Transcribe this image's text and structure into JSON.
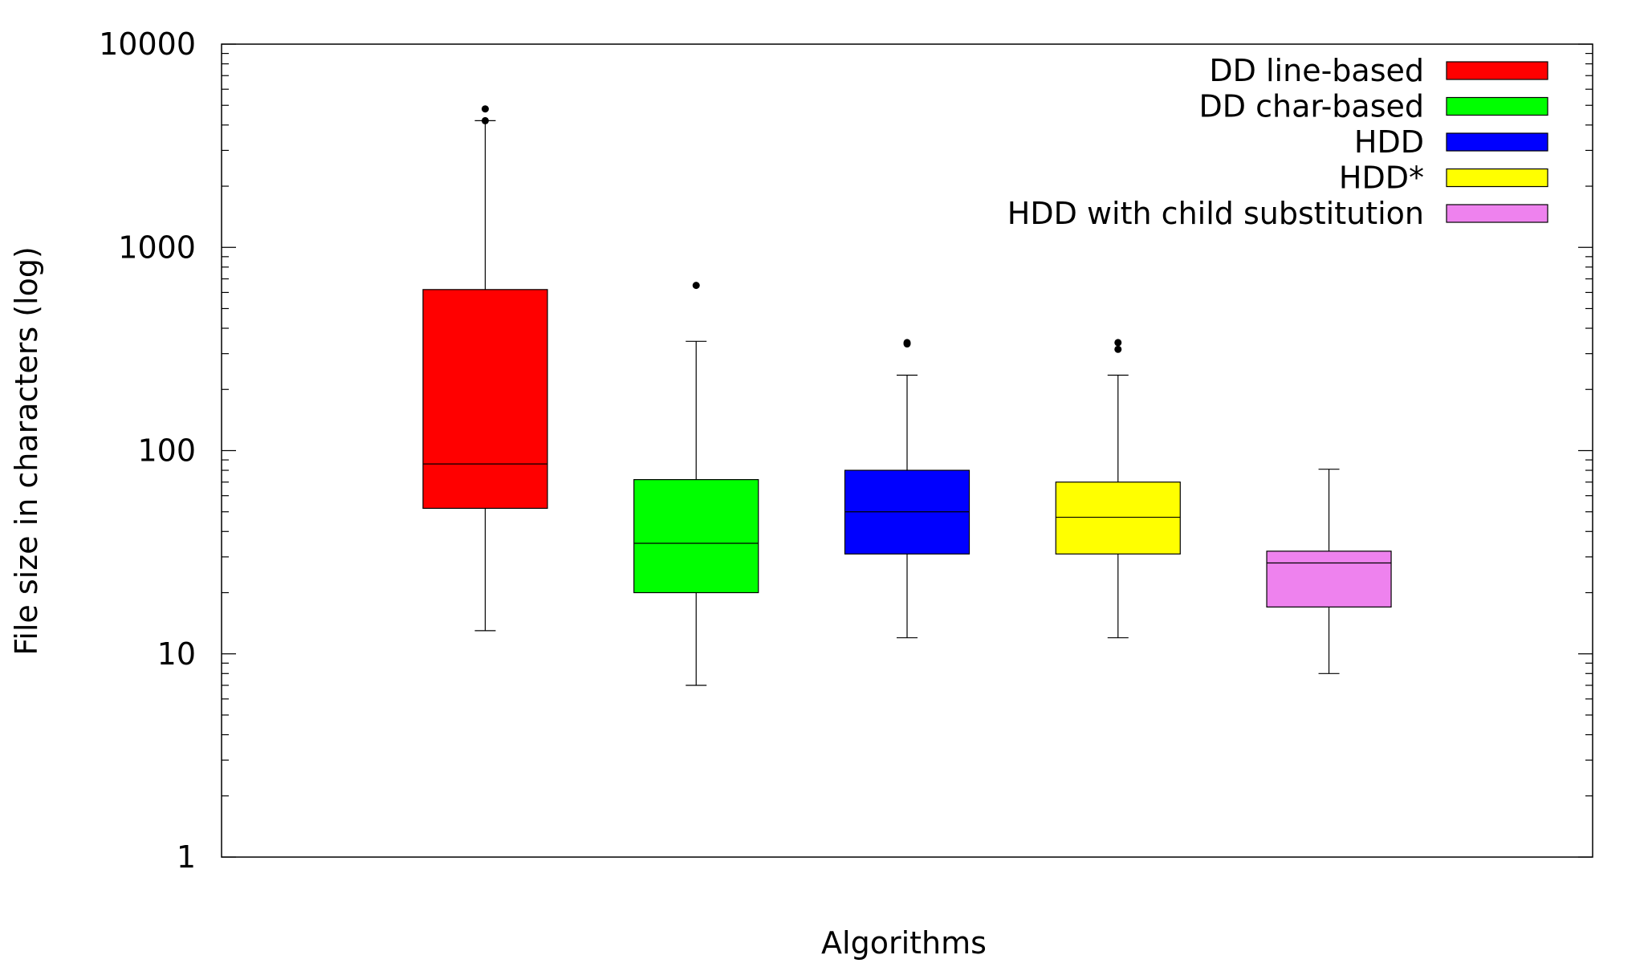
{
  "chart_data": {
    "type": "boxplot",
    "xlabel": "Algorithms",
    "ylabel": "File size in characters (log)",
    "y_scale": "log",
    "ylim": [
      1,
      10000
    ],
    "y_ticks": [
      {
        "value": 1,
        "label": "1"
      },
      {
        "value": 10,
        "label": "10"
      },
      {
        "value": 100,
        "label": "100"
      },
      {
        "value": 1000,
        "label": "1000"
      },
      {
        "value": 10000,
        "label": "10000"
      }
    ],
    "grid": false,
    "legend_position": "top-right",
    "series": [
      {
        "name": "DD line-based",
        "color": "#ff0000",
        "min": 13,
        "q1": 52,
        "median": 86,
        "q3": 620,
        "max": 4200,
        "outliers": [
          4200,
          4800
        ]
      },
      {
        "name": "DD char-based",
        "color": "#00ff00",
        "min": 7,
        "q1": 20,
        "median": 35,
        "q3": 72,
        "max": 345,
        "outliers": [
          650
        ]
      },
      {
        "name": "HDD",
        "color": "#0000ff",
        "min": 12,
        "q1": 31,
        "median": 50,
        "q3": 80,
        "max": 235,
        "outliers": [
          335,
          340
        ]
      },
      {
        "name": "HDD*",
        "color": "#ffff00",
        "min": 12,
        "q1": 31,
        "median": 47,
        "q3": 70,
        "max": 235,
        "outliers": [
          315,
          340
        ]
      },
      {
        "name": "HDD with child substitution",
        "color": "#ee82ee",
        "min": 8,
        "q1": 17,
        "median": 28,
        "q3": 32,
        "max": 81,
        "outliers": []
      }
    ]
  }
}
